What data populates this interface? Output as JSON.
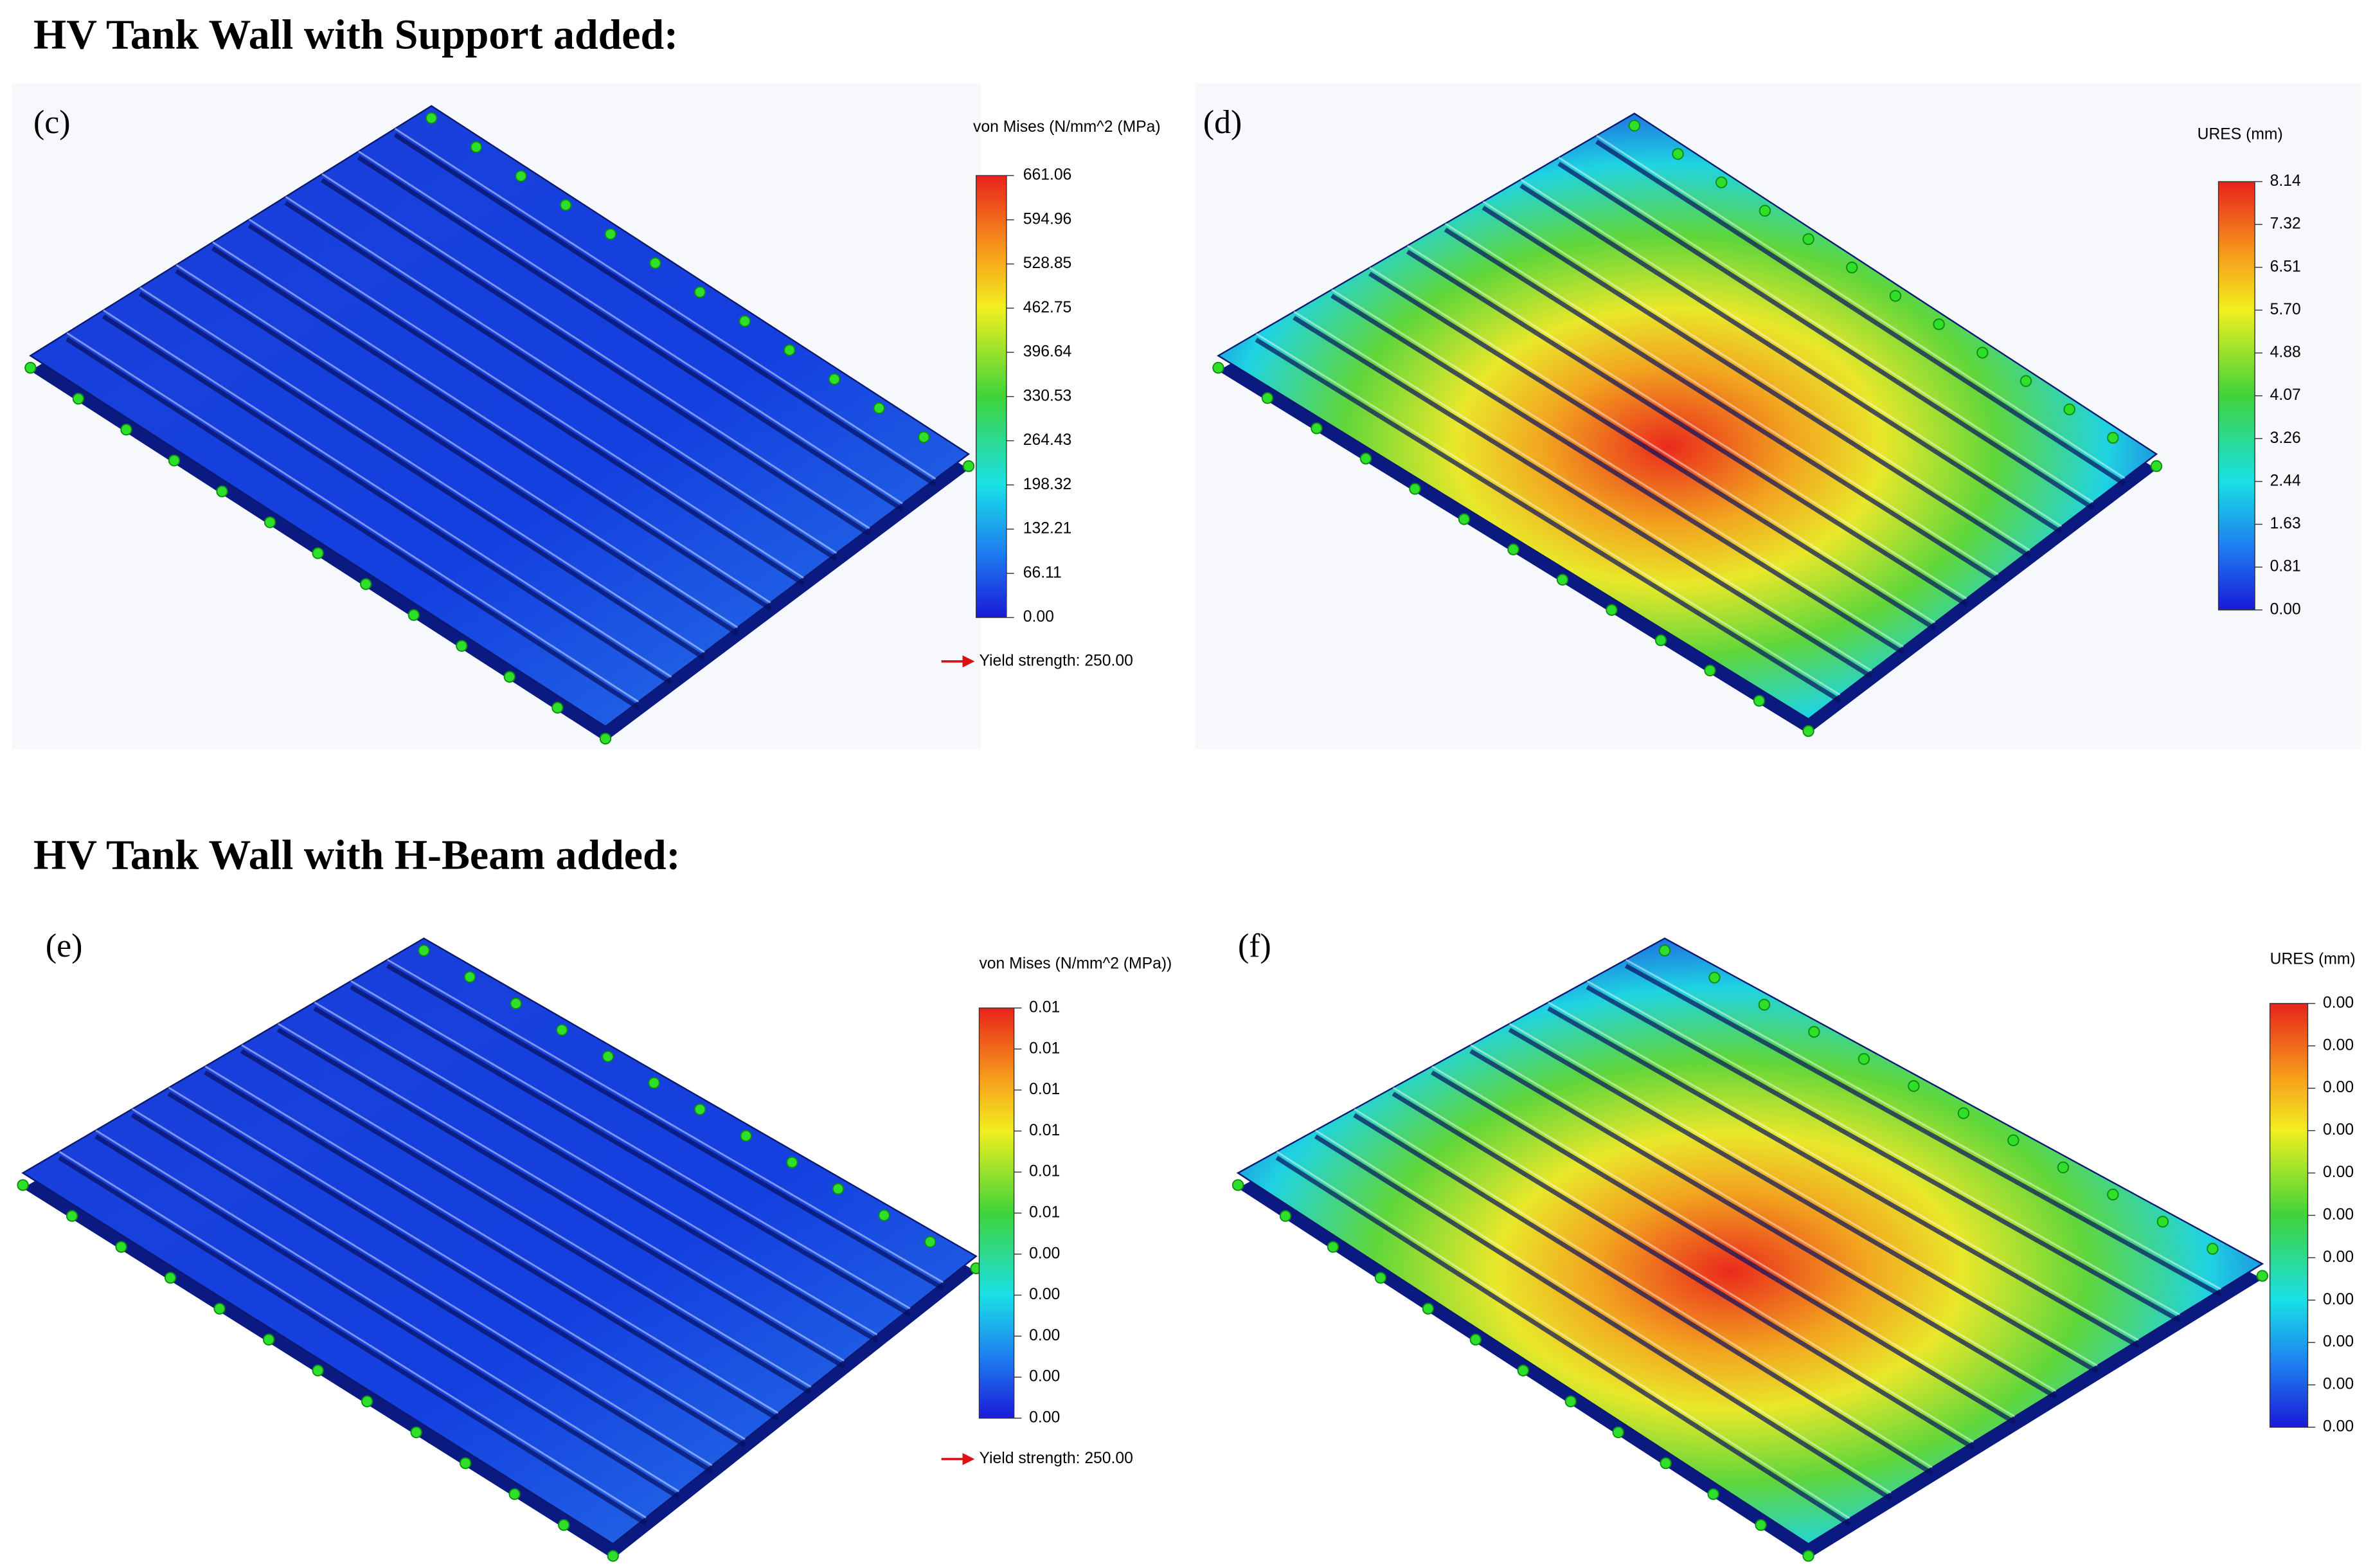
{
  "sections": [
    {
      "title": "HV Tank Wall with Support added:",
      "panels": [
        {
          "label": "(c)",
          "legend": {
            "title": "von Mises (N/mm^2 (MPa)",
            "ticks": [
              "661.06",
              "594.96",
              "528.85",
              "462.75",
              "396.64",
              "330.53",
              "264.43",
              "198.32",
              "132.21",
              "66.11",
              "0.00"
            ]
          },
          "annotation": "Yield strength: 250.00"
        },
        {
          "label": "(d)",
          "legend": {
            "title": "URES (mm)",
            "ticks": [
              "8.14",
              "7.32",
              "6.51",
              "5.70",
              "4.88",
              "4.07",
              "3.26",
              "2.44",
              "1.63",
              "0.81",
              "0.00"
            ]
          }
        }
      ]
    },
    {
      "title": "HV Tank Wall with H-Beam added:",
      "panels": [
        {
          "label": "(e)",
          "legend": {
            "title": "von Mises (N/mm^2 (MPa))",
            "ticks": [
              "0.01",
              "0.01",
              "0.01",
              "0.01",
              "0.01",
              "0.01",
              "0.00",
              "0.00",
              "0.00",
              "0.00",
              "0.00"
            ]
          },
          "annotation": "Yield strength: 250.00"
        },
        {
          "label": "(f)",
          "legend": {
            "title": "URES (mm)",
            "ticks": [
              "0.00",
              "0.00",
              "0.00",
              "0.00",
              "0.00",
              "0.00",
              "0.00",
              "0.00",
              "0.00",
              "0.00",
              "0.00"
            ]
          }
        }
      ]
    }
  ]
}
